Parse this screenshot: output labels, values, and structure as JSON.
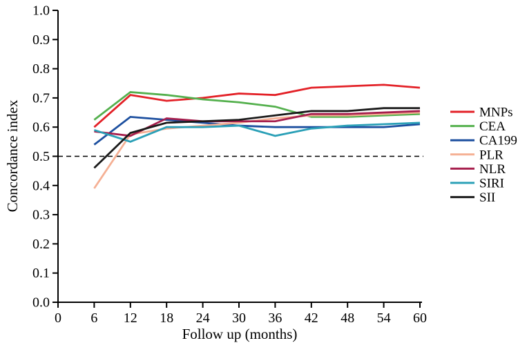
{
  "figure": {
    "background": "#ffffff",
    "axis_color": "#000000"
  },
  "chart_data": {
    "type": "line",
    "title": "",
    "xlabel": "Follow up (months)",
    "ylabel": "Concordance index",
    "xlim": [
      0,
      60
    ],
    "ylim": [
      0.0,
      1.0
    ],
    "x_ticks": [
      "0",
      "6",
      "12",
      "18",
      "24",
      "30",
      "36",
      "42",
      "48",
      "54",
      "60"
    ],
    "x_tick_values": [
      0,
      6,
      12,
      18,
      24,
      30,
      36,
      42,
      48,
      54,
      60
    ],
    "y_ticks": [
      "0.0",
      "0.1",
      "0.2",
      "0.3",
      "0.4",
      "0.5",
      "0.6",
      "0.7",
      "0.8",
      "0.9",
      "1.0"
    ],
    "y_tick_values": [
      0.0,
      0.1,
      0.2,
      0.3,
      0.4,
      0.5,
      0.6,
      0.7,
      0.8,
      0.9,
      1.0
    ],
    "grid": false,
    "legend_position": "right-outside",
    "reference_line": {
      "value": 0.5,
      "style": "dashed",
      "color": "#000000"
    },
    "x": [
      6,
      12,
      18,
      24,
      30,
      36,
      42,
      48,
      54,
      60
    ],
    "series": [
      {
        "name": "MNPs",
        "color": "#e32127",
        "values": [
          0.6,
          0.71,
          0.69,
          0.7,
          0.715,
          0.71,
          0.735,
          0.74,
          0.745,
          0.735
        ]
      },
      {
        "name": "CEA",
        "color": "#54b04d",
        "values": [
          0.625,
          0.72,
          0.71,
          0.695,
          0.685,
          0.67,
          0.635,
          0.635,
          0.64,
          0.645
        ]
      },
      {
        "name": "CA199",
        "color": "#1c4f9f",
        "values": [
          0.54,
          0.635,
          0.625,
          0.615,
          0.605,
          0.6,
          0.6,
          0.6,
          0.6,
          0.61
        ]
      },
      {
        "name": "PLR",
        "color": "#f5b094",
        "values": [
          0.39,
          0.575,
          0.595,
          0.605,
          0.615,
          0.63,
          0.64,
          0.64,
          0.645,
          0.65
        ]
      },
      {
        "name": "NLR",
        "color": "#a61e4d",
        "values": [
          0.585,
          0.57,
          0.63,
          0.62,
          0.62,
          0.62,
          0.645,
          0.645,
          0.65,
          0.655
        ]
      },
      {
        "name": "SIRI",
        "color": "#2ba0b7",
        "values": [
          0.59,
          0.55,
          0.6,
          0.6,
          0.605,
          0.57,
          0.595,
          0.605,
          0.61,
          0.615
        ]
      },
      {
        "name": "SII",
        "color": "#1a1a1a",
        "values": [
          0.46,
          0.58,
          0.615,
          0.62,
          0.625,
          0.64,
          0.655,
          0.655,
          0.665,
          0.665
        ]
      }
    ]
  }
}
